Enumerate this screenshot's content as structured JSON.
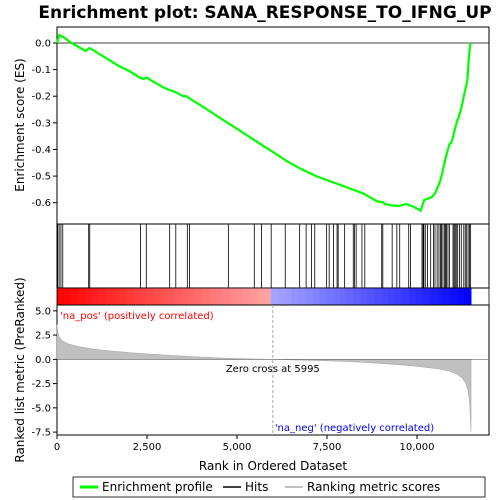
{
  "chart_data": {
    "type": "line",
    "title": "Enrichment plot: SANA_RESPONSE_TO_IFNG_UP",
    "xlabel": "Rank in Ordered Dataset",
    "top_panel": {
      "ylabel": "Enrichment score (ES)",
      "ylim": [
        -0.68,
        0.06
      ],
      "yticks": [
        0.0,
        -0.1,
        -0.2,
        -0.3,
        -0.4,
        -0.5,
        -0.6
      ],
      "ytick_labels": [
        "0.0",
        "-0.1",
        "-0.2",
        "-0.3",
        "-0.4",
        "-0.5",
        "-0.6"
      ],
      "series": [
        {
          "name": "Enrichment profile",
          "color": "#00ff00",
          "x": [
            0,
            60,
            200,
            400,
            600,
            800,
            880,
            920,
            1100,
            1400,
            1700,
            2000,
            2300,
            2400,
            2500,
            2600,
            2800,
            3000,
            3100,
            3300,
            3500,
            3600,
            3700,
            4000,
            4400,
            4800,
            5200,
            5600,
            6000,
            6400,
            6800,
            7200,
            7500,
            7800,
            8000,
            8200,
            8300,
            8500,
            8700,
            8900,
            9050,
            9100,
            9300,
            9500,
            9700,
            9900,
            10100,
            10150,
            10200,
            10300,
            10400,
            10500,
            10550,
            10600,
            10650,
            10700,
            10750,
            10800,
            10850,
            10900,
            10950,
            11000,
            11050,
            11100,
            11150,
            11200,
            11250,
            11300,
            11350,
            11400,
            11420,
            11440,
            11460,
            11480,
            11500
          ],
          "y": [
            0.0,
            0.03,
            0.02,
            0.0,
            -0.015,
            -0.03,
            -0.02,
            -0.02,
            -0.035,
            -0.06,
            -0.085,
            -0.105,
            -0.13,
            -0.135,
            -0.13,
            -0.14,
            -0.155,
            -0.17,
            -0.175,
            -0.185,
            -0.2,
            -0.2,
            -0.21,
            -0.235,
            -0.27,
            -0.305,
            -0.34,
            -0.375,
            -0.41,
            -0.445,
            -0.475,
            -0.5,
            -0.515,
            -0.53,
            -0.54,
            -0.55,
            -0.555,
            -0.565,
            -0.58,
            -0.595,
            -0.598,
            -0.605,
            -0.61,
            -0.612,
            -0.605,
            -0.615,
            -0.63,
            -0.61,
            -0.59,
            -0.585,
            -0.58,
            -0.565,
            -0.55,
            -0.535,
            -0.515,
            -0.49,
            -0.46,
            -0.43,
            -0.405,
            -0.38,
            -0.375,
            -0.355,
            -0.325,
            -0.3,
            -0.28,
            -0.26,
            -0.235,
            -0.2,
            -0.17,
            -0.14,
            -0.1,
            -0.06,
            -0.03,
            -0.005,
            0.0
          ]
        }
      ],
      "hits": [
        20,
        60,
        110,
        160,
        880,
        910,
        2320,
        2480,
        3130,
        3300,
        3620,
        3680,
        4760,
        5480,
        5680,
        5950,
        6340,
        6740,
        6920,
        7070,
        7160,
        7490,
        7560,
        7680,
        7780,
        7810,
        7990,
        8230,
        8260,
        8310,
        8470,
        8550,
        9020,
        9050,
        9310,
        9440,
        9520,
        9770,
        9820,
        10140,
        10170,
        10190,
        10230,
        10290,
        10380,
        10460,
        10500,
        10560,
        10610,
        10650,
        10680,
        10720,
        10760,
        10790,
        10820,
        10860,
        10900,
        11000,
        11030,
        11060,
        11090,
        11130,
        11180,
        11230,
        11300,
        11340,
        11380,
        11420,
        11460,
        11490
      ]
    },
    "bottom_panel": {
      "ylabel": "Ranked list metric (PreRanked)",
      "ylim": [
        -7.8,
        5.6
      ],
      "yticks": [
        5.0,
        2.5,
        0.0,
        -2.5,
        -5.0,
        -7.5
      ],
      "ytick_labels": [
        "5.0",
        "2.5",
        "0.0",
        "-2.5",
        "-5.0",
        "-7.5"
      ],
      "metric_curve": {
        "name": "Ranking metric scores",
        "color": "#c0c0c0",
        "x": [
          0,
          20,
          60,
          150,
          300,
          600,
          1000,
          1500,
          2000,
          2500,
          3000,
          3500,
          4000,
          4500,
          5000,
          5500,
          5995,
          6500,
          7000,
          7500,
          8000,
          8500,
          9000,
          9500,
          10000,
          10300,
          10600,
          10900,
          11100,
          11250,
          11350,
          11420,
          11460,
          11490,
          11500
        ],
        "y": [
          3.6,
          2.8,
          2.3,
          1.9,
          1.6,
          1.3,
          1.05,
          0.85,
          0.7,
          0.56,
          0.45,
          0.34,
          0.24,
          0.15,
          0.08,
          0.03,
          0.0,
          -0.05,
          -0.1,
          -0.15,
          -0.22,
          -0.3,
          -0.42,
          -0.55,
          -0.72,
          -0.85,
          -1.0,
          -1.2,
          -1.5,
          -1.9,
          -2.4,
          -3.2,
          -4.4,
          -6.5,
          -7.5
        ]
      },
      "zero_cross": 5995,
      "zero_cross_label": "Zero cross at 5995",
      "pos_label": "'na_pos' (positively correlated)",
      "neg_label": "'na_neg' (negatively correlated)",
      "pos_color": "#ff0000",
      "neg_color": "#0000ff"
    },
    "xlim": [
      0,
      12000
    ],
    "xticks": [
      0,
      2500,
      5000,
      7500,
      10000
    ],
    "xtick_labels": [
      "0",
      "2,500",
      "5,000",
      "7,500",
      "10,000"
    ],
    "n_ranks": 11500,
    "legend": {
      "placement": "bottom",
      "items": [
        {
          "label": "Enrichment profile",
          "color": "#00ff00"
        },
        {
          "label": "Hits",
          "color": "#000000"
        },
        {
          "label": "Ranking metric scores",
          "color": "#c0c0c0"
        }
      ]
    }
  }
}
